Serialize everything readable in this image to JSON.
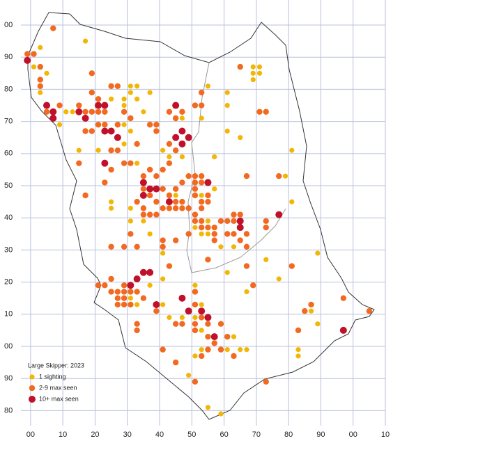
{
  "chart_data": {
    "type": "scatter",
    "legend_title": "Large Skipper:  2023",
    "xlim": [
      -3,
      110
    ],
    "ylim": [
      -25,
      107
    ],
    "xticks": [
      {
        "value": 0,
        "label": "00"
      },
      10,
      20,
      30,
      40,
      50,
      60,
      70,
      80,
      90,
      {
        "value": 100,
        "label": "00"
      },
      {
        "value": 110,
        "label": "10"
      }
    ],
    "yticks": [
      {
        "value": -20,
        "label": "80"
      },
      {
        "value": -10,
        "label": "90"
      },
      {
        "value": 0,
        "label": "00"
      },
      10,
      20,
      30,
      40,
      50,
      60,
      70,
      80,
      90,
      {
        "value": 100,
        "label": "00"
      }
    ],
    "grid": true,
    "legend": "lower left",
    "series": [
      {
        "name": "1 sighting",
        "color": "#f2b705",
        "x": [
          3,
          17,
          1,
          5,
          3,
          11,
          9,
          13,
          15,
          21,
          25,
          29,
          29,
          31,
          33,
          31,
          33,
          37,
          35,
          29,
          31,
          29,
          33,
          25,
          25,
          25,
          31,
          31,
          35,
          37,
          41,
          41,
          41,
          43,
          45,
          41,
          43,
          47,
          47,
          53,
          53,
          57,
          57,
          55,
          61,
          61,
          61,
          65,
          51,
          55,
          57,
          59,
          63,
          69,
          69,
          69,
          71,
          71,
          61,
          67,
          73,
          77,
          81,
          79,
          81,
          89,
          87,
          89,
          83,
          83,
          63,
          65,
          67,
          61,
          53,
          51,
          49,
          55,
          59,
          53,
          47,
          51,
          53,
          31,
          33,
          37,
          51,
          53,
          55
        ],
        "values": [
          93,
          95,
          87,
          85,
          79,
          73,
          69,
          73,
          61,
          61,
          77,
          77,
          75,
          81,
          81,
          79,
          77,
          79,
          73,
          69,
          67,
          63,
          57,
          55,
          45,
          43,
          43,
          39,
          39,
          35,
          29,
          21,
          13,
          9,
          47,
          61,
          59,
          59,
          71,
          71,
          47,
          49,
          59,
          81,
          79,
          75,
          67,
          65,
          37,
          39,
          37,
          31,
          31,
          83,
          85,
          87,
          85,
          87,
          23,
          17,
          27,
          21,
          61,
          53,
          45,
          29,
          11,
          7,
          -1,
          -3,
          3,
          -1,
          -1,
          -1,
          -1,
          -3,
          -9,
          -19,
          -21,
          5,
          9,
          9,
          13,
          15,
          13,
          19,
          19,
          35,
          35
        ]
      },
      {
        "name": "2-9 max seen",
        "color": "#f26a21",
        "x": [
          -1,
          1,
          7,
          3,
          3,
          3,
          5,
          9,
          15,
          19,
          19,
          19,
          17,
          17,
          21,
          21,
          23,
          19,
          25,
          27,
          29,
          27,
          31,
          33,
          29,
          31,
          27,
          21,
          23,
          25,
          23,
          25,
          15,
          17,
          25,
          29,
          31,
          33,
          33,
          35,
          35,
          37,
          39,
          35,
          37,
          39,
          35,
          37,
          39,
          41,
          37,
          39,
          39,
          43,
          45,
          47,
          41,
          43,
          43,
          45,
          41,
          43,
          45,
          47,
          49,
          47,
          45,
          43,
          45,
          47,
          49,
          51,
          53,
          51,
          51,
          53,
          51,
          55,
          53,
          55,
          53,
          51,
          51,
          53,
          53,
          55,
          57,
          57,
          57,
          59,
          61,
          63,
          63,
          65,
          61,
          63,
          65,
          67,
          67,
          73,
          73,
          71,
          73,
          65,
          67,
          77,
          51,
          53,
          53,
          55,
          67,
          69,
          41,
          41,
          45,
          49,
          43,
          33,
          31,
          29,
          27,
          29,
          27,
          25,
          23,
          25,
          29,
          27,
          29,
          31,
          33,
          33,
          35,
          39,
          45,
          47,
          49,
          51,
          51,
          51,
          51,
          53,
          55,
          55,
          57,
          59,
          61,
          59,
          63,
          53,
          55,
          45,
          41,
          51,
          73,
          83,
          85,
          87,
          97,
          105,
          81,
          21
        ],
        "values": [
          91,
          91,
          99,
          87,
          83,
          81,
          73,
          75,
          75,
          79,
          73,
          67,
          67,
          73,
          77,
          73,
          73,
          85,
          81,
          81,
          73,
          69,
          71,
          63,
          57,
          57,
          61,
          69,
          69,
          61,
          51,
          55,
          57,
          47,
          31,
          31,
          35,
          31,
          45,
          43,
          41,
          41,
          41,
          53,
          55,
          53,
          49,
          47,
          45,
          49,
          69,
          69,
          67,
          73,
          71,
          73,
          55,
          57,
          63,
          61,
          43,
          43,
          43,
          43,
          43,
          45,
          45,
          47,
          49,
          51,
          53,
          53,
          53,
          51,
          49,
          51,
          47,
          47,
          45,
          45,
          43,
          39,
          41,
          39,
          37,
          37,
          37,
          35,
          33,
          39,
          39,
          39,
          41,
          41,
          35,
          35,
          33,
          35,
          31,
          39,
          37,
          73,
          73,
          87,
          53,
          53,
          75,
          75,
          79,
          27,
          25,
          19,
          33,
          31,
          33,
          35,
          25,
          17,
          17,
          17,
          17,
          15,
          15,
          17,
          19,
          21,
          19,
          13,
          13,
          13,
          7,
          5,
          15,
          11,
          7,
          7,
          11,
          17,
          13,
          7,
          5,
          9,
          7,
          3,
          1,
          7,
          3,
          -1,
          -3,
          -3,
          -1,
          -5,
          -1,
          -11,
          -11,
          5,
          11,
          13,
          15,
          11,
          25,
          19
        ]
      },
      {
        "name": "10+ max seen",
        "color": "#c0102a",
        "x": [
          -1,
          5,
          7,
          7,
          15,
          17,
          21,
          23,
          23,
          25,
          27,
          23,
          35,
          37,
          39,
          35,
          43,
          45,
          45,
          47,
          47,
          49,
          55,
          65,
          65,
          77,
          33,
          31,
          35,
          37,
          39,
          47,
          49,
          53,
          55,
          57,
          97
        ],
        "values": [
          89,
          75,
          73,
          71,
          73,
          71,
          75,
          75,
          67,
          67,
          65,
          57,
          51,
          49,
          49,
          47,
          45,
          75,
          65,
          67,
          63,
          65,
          51,
          39,
          37,
          41,
          21,
          19,
          23,
          23,
          13,
          15,
          11,
          11,
          9,
          3,
          5
        ]
      }
    ]
  }
}
